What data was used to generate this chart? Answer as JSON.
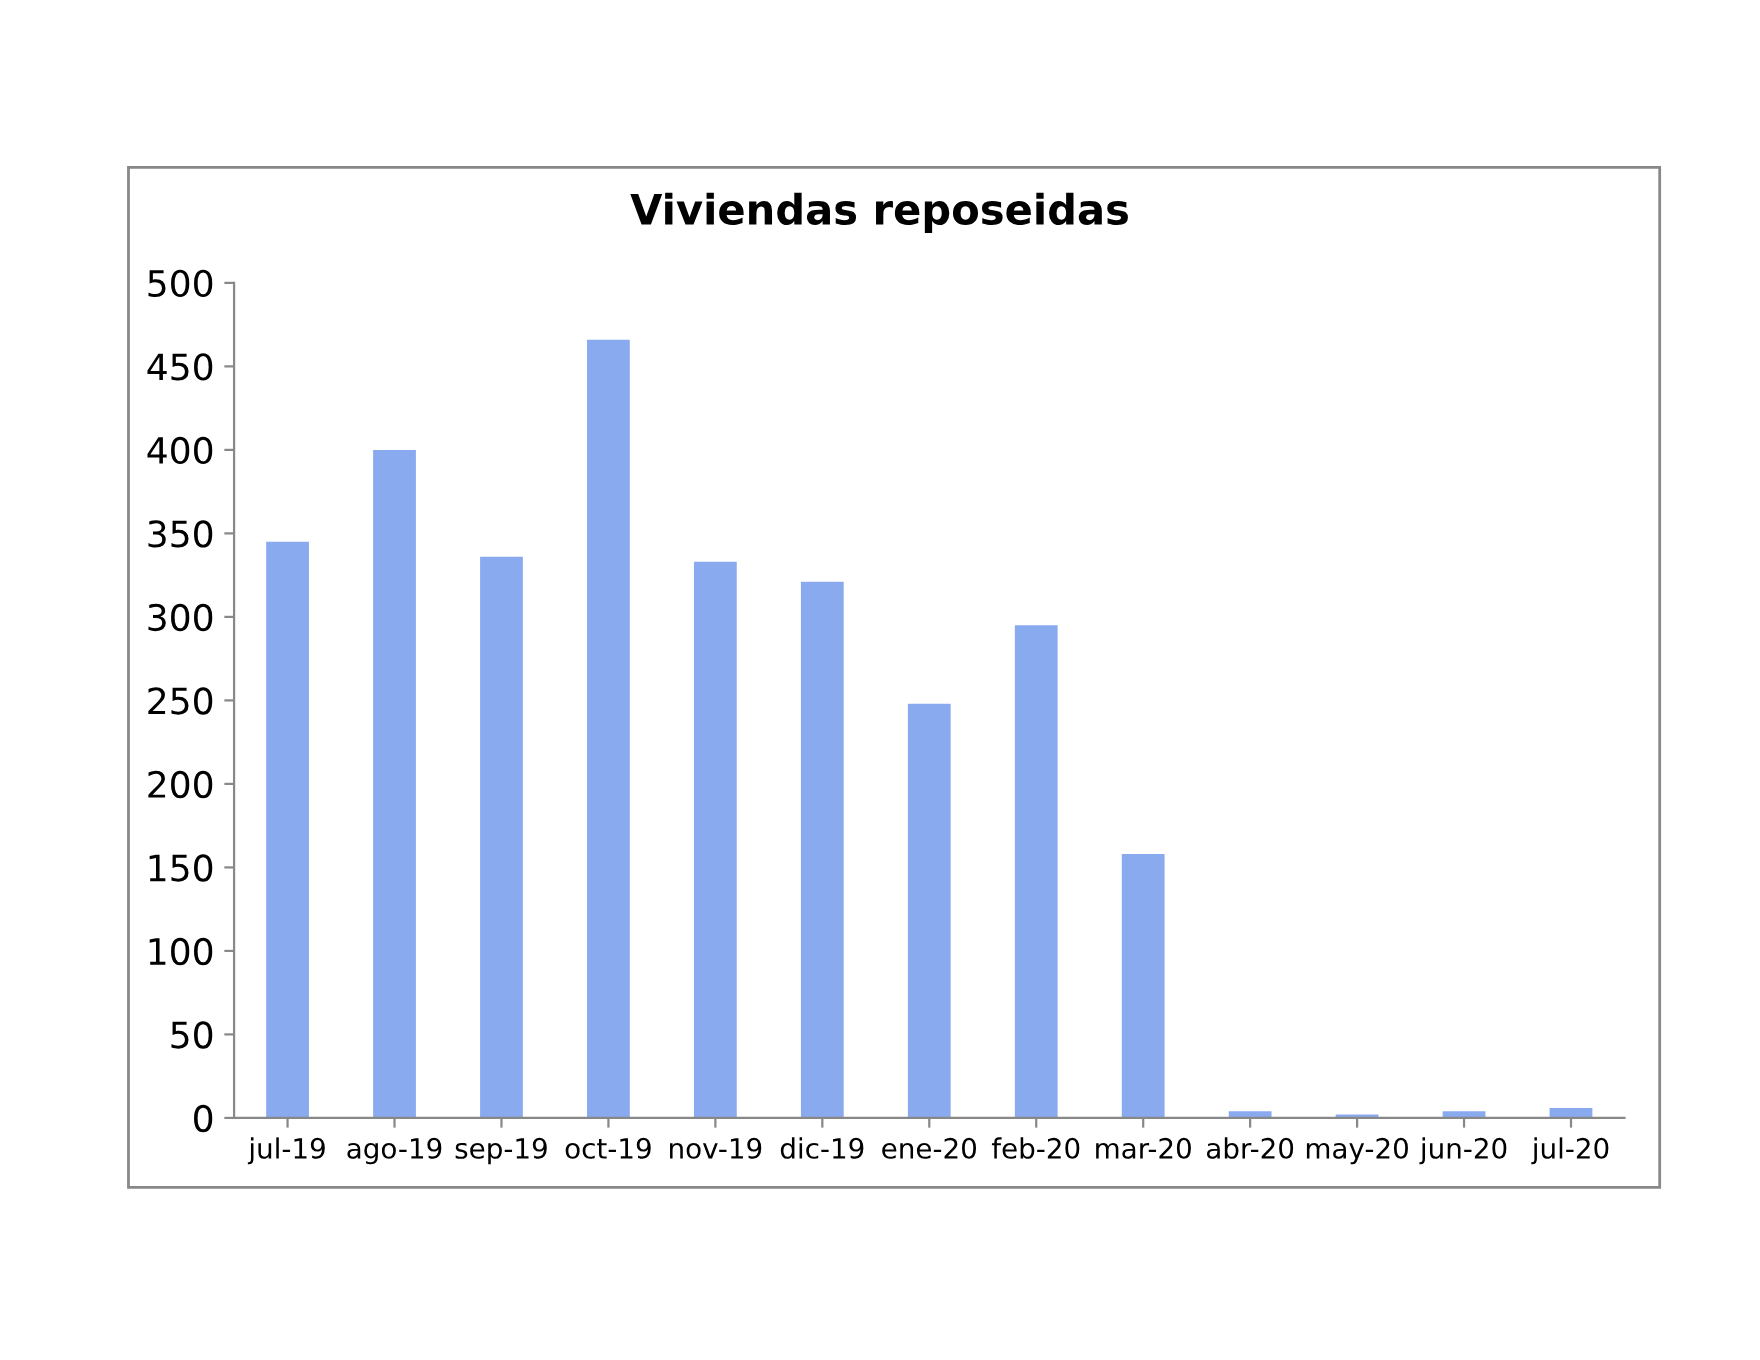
{
  "chart_data": {
    "type": "bar",
    "title": "Viviendas reposeidas",
    "categories": [
      "jul-19",
      "ago-19",
      "sep-19",
      "oct-19",
      "nov-19",
      "dic-19",
      "ene-20",
      "feb-20",
      "mar-20",
      "abr-20",
      "may-20",
      "jun-20",
      "jul-20"
    ],
    "values": [
      345,
      400,
      336,
      466,
      333,
      321,
      248,
      295,
      158,
      4,
      2,
      4,
      6
    ],
    "color": "#8aaaef",
    "ylim": [
      0,
      500
    ],
    "yticks": [
      0,
      50,
      100,
      150,
      200,
      250,
      300,
      350,
      400,
      450,
      500
    ],
    "grid": false,
    "legend": false
  }
}
